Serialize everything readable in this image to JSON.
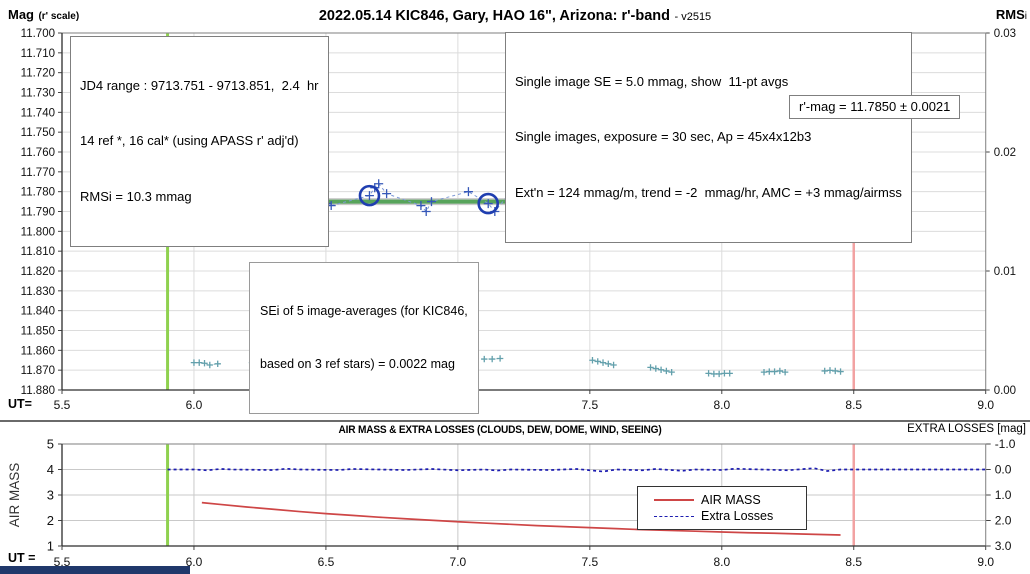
{
  "chart_data": [
    {
      "type": "scatter",
      "title": "2022.05.14 KIC846, Gary, HAO 16\", Arizona: r'-band",
      "title_suffix": "- v2515",
      "x_label": "UT=",
      "x_ticks": [
        "5.5",
        "6.0",
        "6.5",
        "7.0",
        "7.5",
        "8.0",
        "8.5",
        "9.0"
      ],
      "xlim": [
        5.5,
        9.0
      ],
      "y_left": {
        "label": "Mag",
        "label_sub": "(r' scale)",
        "ticks": [
          "11.700",
          "11.710",
          "11.720",
          "11.730",
          "11.740",
          "11.750",
          "11.760",
          "11.770",
          "11.780",
          "11.790",
          "11.800",
          "11.810",
          "11.820",
          "11.830",
          "11.840",
          "11.850",
          "11.860",
          "11.870",
          "11.880"
        ],
        "lim": [
          11.88,
          11.7
        ]
      },
      "y_right": {
        "label": "RMS",
        "label_sub": "i",
        "ticks": [
          "0.03",
          "0.02",
          "0.01",
          "0.00"
        ],
        "lim": [
          0.0,
          0.03
        ]
      },
      "annotations": {
        "jd4_lines": [
          "JD4 range : 9713.751 - 9713.851,  2.4  hr",
          "14 ref *, 16 cal* (using APASS r' adj'd)",
          "RMSi = 10.3 mmag"
        ],
        "se_lines": [
          "Single image SE = 5.0 mmag, show  11-pt avgs",
          "Single images, exposure = 30 sec, Ap = 45x4x12b3",
          "Ext'n = 124 mmag/m, trend = -2  mmag/hr, AMC = +3 mmag/airmss"
        ],
        "rmag": "r'-mag = 11.7850 ± 0.0021",
        "sei_lines": [
          "SEi of 5 image-averages (for KIC846,",
          "based on 3 ref stars) = 0.0022 mag"
        ]
      },
      "vlines": [
        {
          "x": 5.9,
          "color": "#8FD14F",
          "width": 3
        },
        {
          "x": 8.5,
          "color": "#F2A2A2",
          "width": 2.5
        }
      ],
      "series": [
        {
          "name": "reference-band",
          "axis": "left",
          "line": "solid",
          "width": 7,
          "color": "#C9C9C9",
          "points": [
            [
              5.98,
              11.785
            ],
            [
              8.53,
              11.785
            ]
          ]
        },
        {
          "name": "mean r'-mag trend",
          "axis": "left",
          "line": "solid",
          "width": 4,
          "color": "#57A45B",
          "points": [
            [
              6.02,
              11.785
            ],
            [
              8.45,
              11.785
            ]
          ]
        },
        {
          "name": "single-image 11-pt averages",
          "axis": "left",
          "line": "dashed",
          "line_color": "#7E99D6",
          "marker": "plus",
          "marker_size": 4.5,
          "color": "#3557B8",
          "points": [
            [
              6.02,
              11.779
            ],
            [
              6.035,
              11.791
            ],
            [
              6.06,
              11.78
            ],
            [
              6.08,
              11.791
            ],
            [
              6.235,
              11.786
            ],
            [
              6.26,
              11.778
            ],
            [
              6.285,
              11.779
            ],
            [
              6.31,
              11.779
            ],
            [
              6.33,
              11.78
            ],
            [
              6.435,
              11.795
            ],
            [
              6.455,
              11.773
            ],
            [
              6.465,
              11.794
            ],
            [
              6.49,
              11.786
            ],
            [
              6.505,
              11.786
            ],
            [
              6.52,
              11.787
            ],
            [
              6.665,
              11.782
            ],
            [
              6.685,
              11.778
            ],
            [
              6.7,
              11.776
            ],
            [
              6.73,
              11.781
            ],
            [
              6.86,
              11.787
            ],
            [
              6.88,
              11.79
            ],
            [
              6.9,
              11.785
            ],
            [
              7.04,
              11.78
            ],
            [
              7.115,
              11.786
            ],
            [
              7.14,
              11.79
            ],
            [
              7.25,
              11.772
            ],
            [
              7.27,
              11.791
            ],
            [
              7.36,
              11.784
            ],
            [
              7.385,
              11.785
            ],
            [
              7.41,
              11.79
            ],
            [
              7.43,
              11.794
            ],
            [
              7.55,
              11.77
            ],
            [
              7.575,
              11.789
            ],
            [
              7.6,
              11.789
            ],
            [
              7.7,
              11.785
            ],
            [
              7.72,
              11.782
            ],
            [
              7.75,
              11.791
            ],
            [
              7.78,
              11.792
            ],
            [
              7.93,
              11.784
            ],
            [
              7.955,
              11.781
            ],
            [
              7.98,
              11.786
            ],
            [
              8.1,
              11.786
            ],
            [
              8.2,
              11.781
            ],
            [
              8.22,
              11.787
            ],
            [
              8.37,
              11.784
            ],
            [
              8.4,
              11.785
            ],
            [
              8.44,
              11.792
            ]
          ]
        },
        {
          "name": "image-averages (5)",
          "axis": "left",
          "marker": "circle",
          "marker_size": 9.5,
          "color": "#1F3EB0",
          "points": [
            [
              6.235,
              11.786
            ],
            [
              6.665,
              11.782
            ],
            [
              7.115,
              11.786
            ],
            [
              7.93,
              11.784
            ],
            [
              8.37,
              11.784
            ]
          ]
        },
        {
          "name": "RMSi of image-averages",
          "axis": "right",
          "line": "dashed-clusters",
          "line_color": "#8FB8C0",
          "marker": "plus",
          "marker_size": 3.2,
          "color": "#63A0AC",
          "points": [
            [
              6.0,
              0.0023
            ],
            [
              6.02,
              0.0023
            ],
            [
              6.04,
              0.00225
            ],
            [
              6.06,
              0.0021
            ],
            [
              6.09,
              0.0022
            ],
            [
              6.22,
              0.0023
            ],
            [
              6.24,
              0.00235
            ],
            [
              6.26,
              0.0023
            ],
            [
              6.28,
              0.00225
            ],
            [
              6.31,
              0.0023
            ],
            [
              6.45,
              0.0022
            ],
            [
              6.47,
              0.00225
            ],
            [
              6.49,
              0.0022
            ],
            [
              6.51,
              0.00225
            ],
            [
              6.53,
              0.0023
            ],
            [
              6.67,
              0.0024
            ],
            [
              6.69,
              0.00245
            ],
            [
              6.71,
              0.0025
            ],
            [
              6.73,
              0.00245
            ],
            [
              6.76,
              0.0025
            ],
            [
              6.88,
              0.00255
            ],
            [
              6.9,
              0.0026
            ],
            [
              6.92,
              0.0026
            ],
            [
              6.94,
              0.00265
            ],
            [
              6.96,
              0.0026
            ],
            [
              7.1,
              0.0026
            ],
            [
              7.13,
              0.0026
            ],
            [
              7.16,
              0.00265
            ],
            [
              7.51,
              0.0025
            ],
            [
              7.53,
              0.0024
            ],
            [
              7.55,
              0.0023
            ],
            [
              7.57,
              0.0022
            ],
            [
              7.59,
              0.0021
            ],
            [
              7.73,
              0.0019
            ],
            [
              7.75,
              0.0018
            ],
            [
              7.77,
              0.0017
            ],
            [
              7.79,
              0.0016
            ],
            [
              7.81,
              0.0015
            ],
            [
              7.95,
              0.0014
            ],
            [
              7.97,
              0.00135
            ],
            [
              7.99,
              0.00135
            ],
            [
              8.01,
              0.0014
            ],
            [
              8.03,
              0.0014
            ],
            [
              8.16,
              0.0015
            ],
            [
              8.18,
              0.00155
            ],
            [
              8.2,
              0.00155
            ],
            [
              8.22,
              0.0016
            ],
            [
              8.24,
              0.0015
            ],
            [
              8.39,
              0.0016
            ],
            [
              8.41,
              0.00165
            ],
            [
              8.43,
              0.0016
            ],
            [
              8.45,
              0.00155
            ]
          ]
        }
      ]
    },
    {
      "type": "line",
      "title": "AIR MASS & EXTRA LOSSES (CLOUDS, DEW, DOME, WIND, SEEING)",
      "right_axis_title": "EXTRA LOSSES [mag]",
      "x_label": "UT =",
      "x_ticks": [
        "5.5",
        "6.0",
        "6.5",
        "7.0",
        "7.5",
        "8.0",
        "8.5",
        "9.0"
      ],
      "xlim": [
        5.5,
        9.0
      ],
      "y_left": {
        "label": "AIR MASS",
        "ticks": [
          "5",
          "4",
          "3",
          "2",
          "1"
        ],
        "lim": [
          1,
          5
        ]
      },
      "y_right": {
        "ticks": [
          "-1.0",
          "0.0",
          "1.0",
          "2.0",
          "3.0"
        ],
        "lim": [
          3.0,
          -1.0
        ]
      },
      "legend": {
        "position": "inside-right",
        "items": [
          {
            "label": "AIR MASS",
            "color": "#CE4646",
            "line": "solid"
          },
          {
            "label": "Extra Losses",
            "color": "#1C1CB0",
            "line": "dashed"
          }
        ]
      },
      "vlines": [
        {
          "x": 5.9,
          "color": "#8FD14F",
          "width": 3
        },
        {
          "x": 8.5,
          "color": "#F2A2A2",
          "width": 2.5
        }
      ],
      "series": [
        {
          "name": "AIR MASS",
          "axis": "left",
          "line": "solid",
          "width": 1.7,
          "color": "#CE4646",
          "points": [
            [
              6.03,
              2.7
            ],
            [
              6.1,
              2.63
            ],
            [
              6.2,
              2.53
            ],
            [
              6.3,
              2.44
            ],
            [
              6.4,
              2.35
            ],
            [
              6.5,
              2.27
            ],
            [
              6.6,
              2.2
            ],
            [
              6.7,
              2.13
            ],
            [
              6.8,
              2.07
            ],
            [
              6.9,
              2.01
            ],
            [
              7.0,
              1.95
            ],
            [
              7.1,
              1.9
            ],
            [
              7.2,
              1.85
            ],
            [
              7.3,
              1.8
            ],
            [
              7.4,
              1.76
            ],
            [
              7.5,
              1.72
            ],
            [
              7.6,
              1.68
            ],
            [
              7.7,
              1.64
            ],
            [
              7.8,
              1.61
            ],
            [
              7.9,
              1.58
            ],
            [
              8.0,
              1.55
            ],
            [
              8.1,
              1.52
            ],
            [
              8.2,
              1.5
            ],
            [
              8.3,
              1.47
            ],
            [
              8.45,
              1.43
            ]
          ]
        },
        {
          "name": "Extra Losses",
          "axis": "right",
          "line": "dashed",
          "width": 1.7,
          "line_color": "#1C1CB0",
          "color": "#1C1CB0",
          "points": [
            [
              5.9,
              0.0
            ],
            [
              6.0,
              0.0
            ],
            [
              6.05,
              0.03
            ],
            [
              6.1,
              -0.02
            ],
            [
              6.15,
              0.0
            ],
            [
              6.3,
              0.02
            ],
            [
              6.35,
              -0.03
            ],
            [
              6.4,
              0.0
            ],
            [
              6.55,
              0.02
            ],
            [
              6.6,
              -0.02
            ],
            [
              6.7,
              0.0
            ],
            [
              6.8,
              0.02
            ],
            [
              6.9,
              -0.02
            ],
            [
              7.0,
              0.03
            ],
            [
              7.1,
              0.0
            ],
            [
              7.15,
              0.04
            ],
            [
              7.2,
              0.0
            ],
            [
              7.35,
              0.02
            ],
            [
              7.45,
              -0.02
            ],
            [
              7.55,
              0.08
            ],
            [
              7.6,
              0.0
            ],
            [
              7.7,
              0.03
            ],
            [
              7.75,
              -0.02
            ],
            [
              7.85,
              0.05
            ],
            [
              7.9,
              0.0
            ],
            [
              8.0,
              0.02
            ],
            [
              8.05,
              -0.03
            ],
            [
              8.15,
              0.0
            ],
            [
              8.25,
              0.03
            ],
            [
              8.35,
              -0.05
            ],
            [
              8.4,
              0.06
            ],
            [
              8.45,
              0.0
            ],
            [
              8.6,
              0.0
            ],
            [
              9.0,
              0.0
            ]
          ]
        }
      ]
    }
  ]
}
